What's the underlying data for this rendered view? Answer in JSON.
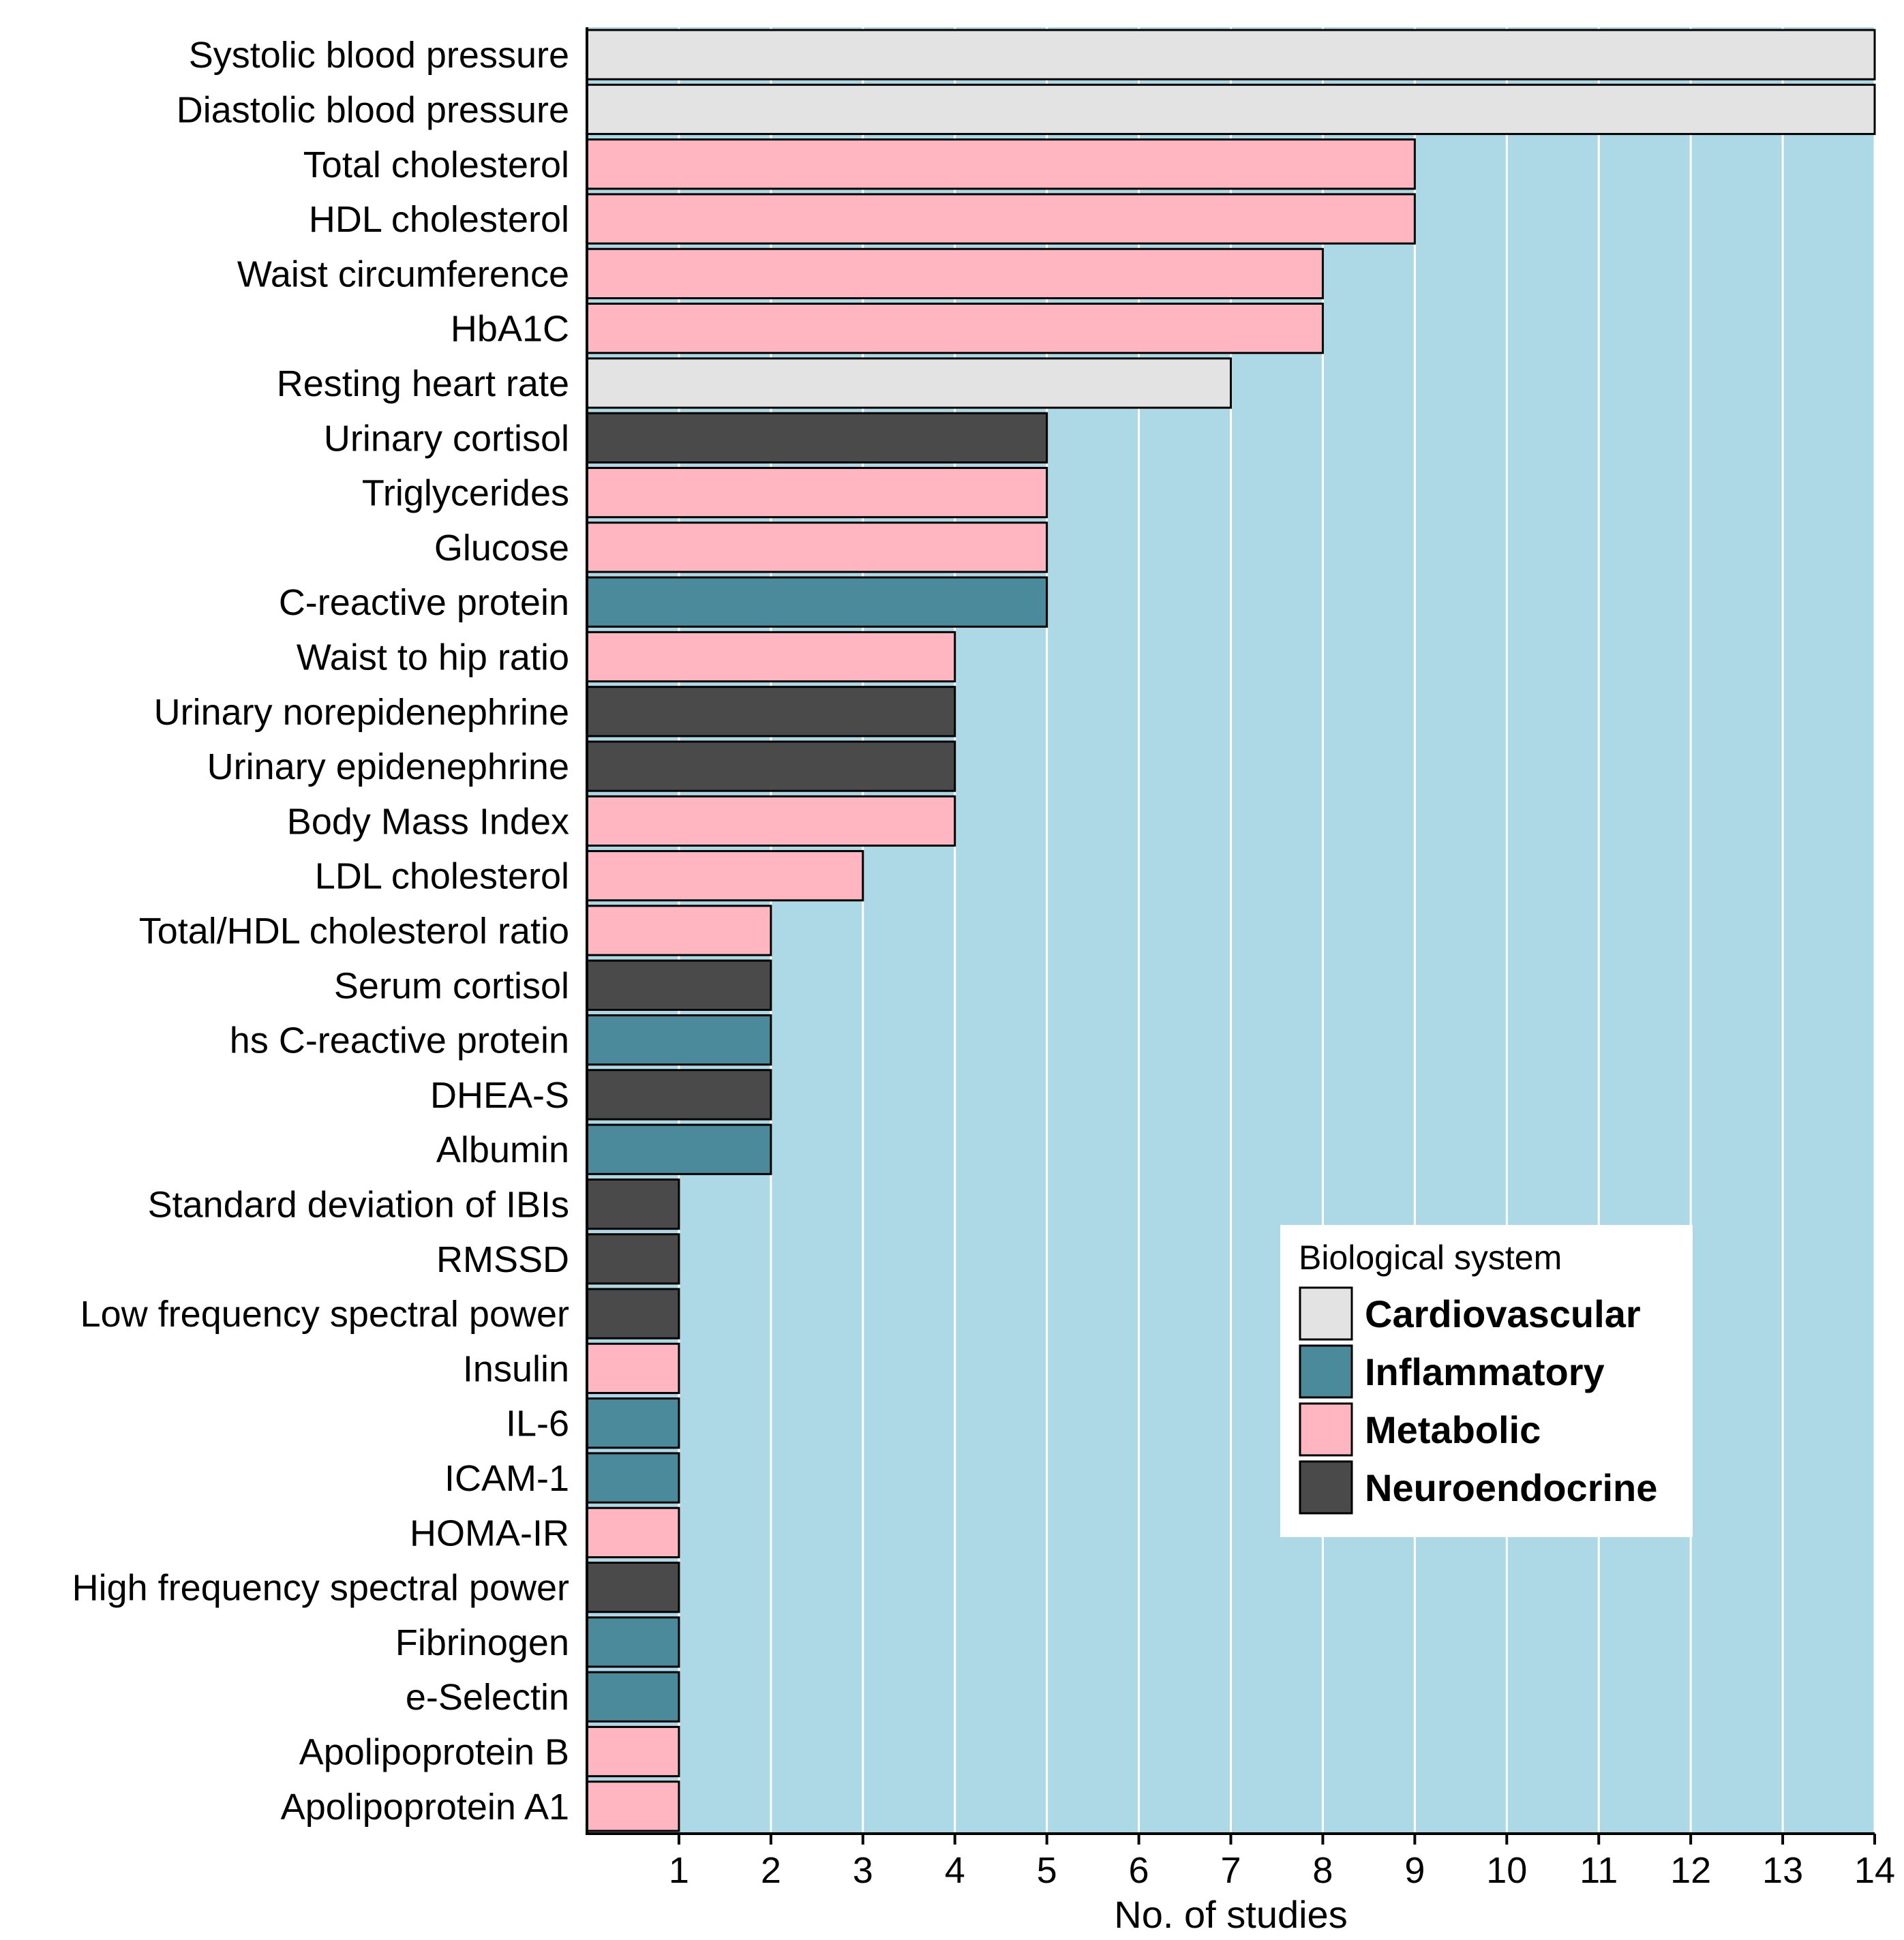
{
  "chart_data": {
    "type": "bar",
    "orientation": "horizontal",
    "title": "",
    "xlabel": "No. of studies",
    "ylabel": "",
    "xlim": [
      0,
      14
    ],
    "xticks": [
      1,
      2,
      3,
      4,
      5,
      6,
      7,
      8,
      9,
      10,
      11,
      12,
      13,
      14
    ],
    "grid": true,
    "categories": [
      "Systolic blood pressure",
      "Diastolic blood pressure",
      "Total cholesterol",
      "HDL cholesterol",
      "Waist circumference",
      "HbA1C",
      "Resting heart rate",
      "Urinary cortisol",
      "Triglycerides",
      "Glucose",
      "C-reactive protein",
      "Waist to hip ratio",
      "Urinary norepidenephrine",
      "Urinary epidenephrine",
      "Body Mass Index",
      "LDL cholesterol",
      "Total/HDL cholesterol ratio",
      "Serum cortisol",
      "hs C-reactive protein",
      "DHEA-S",
      "Albumin",
      "Standard deviation of IBIs",
      "RMSSD",
      "Low frequency spectral power",
      "Insulin",
      "IL-6",
      "ICAM-1",
      "HOMA-IR",
      "High frequency spectral power",
      "Fibrinogen",
      "e-Selectin",
      "Apolipoprotein B",
      "Apolipoprotein A1"
    ],
    "values": [
      14,
      14,
      9,
      9,
      8,
      8,
      7,
      5,
      5,
      5,
      5,
      4,
      4,
      4,
      4,
      3,
      2,
      2,
      2,
      2,
      2,
      1,
      1,
      1,
      1,
      1,
      1,
      1,
      1,
      1,
      1,
      1,
      1
    ],
    "groups": [
      "Cardiovascular",
      "Cardiovascular",
      "Metabolic",
      "Metabolic",
      "Metabolic",
      "Metabolic",
      "Cardiovascular",
      "Neuroendocrine",
      "Metabolic",
      "Metabolic",
      "Inflammatory",
      "Metabolic",
      "Neuroendocrine",
      "Neuroendocrine",
      "Metabolic",
      "Metabolic",
      "Metabolic",
      "Neuroendocrine",
      "Inflammatory",
      "Neuroendocrine",
      "Inflammatory",
      "Neuroendocrine",
      "Neuroendocrine",
      "Neuroendocrine",
      "Metabolic",
      "Inflammatory",
      "Inflammatory",
      "Metabolic",
      "Neuroendocrine",
      "Inflammatory",
      "Inflammatory",
      "Metabolic",
      "Metabolic"
    ],
    "legend": {
      "title": "Biological system",
      "position": "bottom-right",
      "entries": [
        {
          "name": "Cardiovascular",
          "color": "#E3E3E3"
        },
        {
          "name": "Inflammatory",
          "color": "#4B8A9B"
        },
        {
          "name": "Metabolic",
          "color": "#FFB6C1"
        },
        {
          "name": "Neuroendocrine",
          "color": "#4A4A4A"
        }
      ]
    },
    "panel_background": "#ADD8E6",
    "gridline_color": "#FFFFFF"
  }
}
